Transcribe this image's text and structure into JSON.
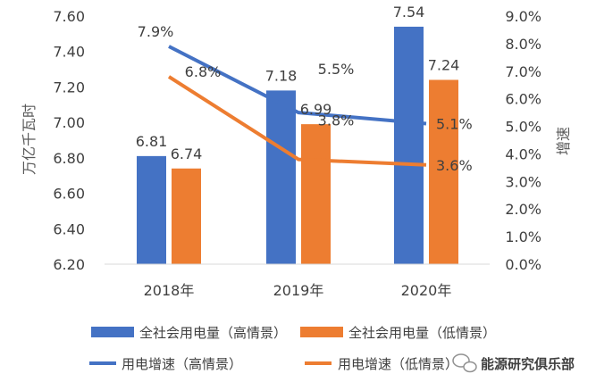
{
  "chart_data": {
    "type": "bar+line",
    "categories": [
      "2018年",
      "2019年",
      "2020年"
    ],
    "y_left": {
      "label": "万亿千瓦时",
      "min": 6.2,
      "max": 7.6,
      "step": 0.2,
      "tick_labels": [
        "6.20",
        "6.40",
        "6.60",
        "6.80",
        "7.00",
        "7.20",
        "7.40",
        "7.60"
      ]
    },
    "y_right": {
      "label": "增速",
      "min": 0,
      "max": 9,
      "step": 1,
      "tick_labels": [
        "0.0%",
        "1.0%",
        "2.0%",
        "3.0%",
        "4.0%",
        "5.0%",
        "6.0%",
        "7.0%",
        "8.0%",
        "9.0%"
      ]
    },
    "bar_series": [
      {
        "name": "全社会用电量（高情景）",
        "color": "#4472C4",
        "values": [
          6.81,
          7.18,
          7.54
        ],
        "labels": [
          "6.81",
          "7.18",
          "7.54"
        ]
      },
      {
        "name": "全社会用电量（低情景）",
        "color": "#ED7D31",
        "values": [
          6.74,
          6.99,
          7.24
        ],
        "labels": [
          "6.74",
          "6.99",
          "7.24"
        ]
      }
    ],
    "line_series": [
      {
        "name": "用电增速（高情景）",
        "color": "#4472C4",
        "values": [
          7.9,
          5.5,
          5.1
        ],
        "labels": [
          "7.9%",
          "5.5%",
          "5.1%"
        ]
      },
      {
        "name": "用电增速（低情景）",
        "color": "#ED7D31",
        "values": [
          6.8,
          3.8,
          3.6
        ],
        "labels": [
          "6.8%",
          "3.8%",
          "3.6%"
        ]
      }
    ],
    "legend_position": "bottom",
    "grid": false
  },
  "legend": {
    "bar_high": "全社会用电量（高情景）",
    "bar_low": "全社会用电量（低情景）",
    "line_high": "用电增速（高情景）",
    "line_low": "用电增速（低情景）"
  },
  "watermark": "能源研究俱乐部"
}
